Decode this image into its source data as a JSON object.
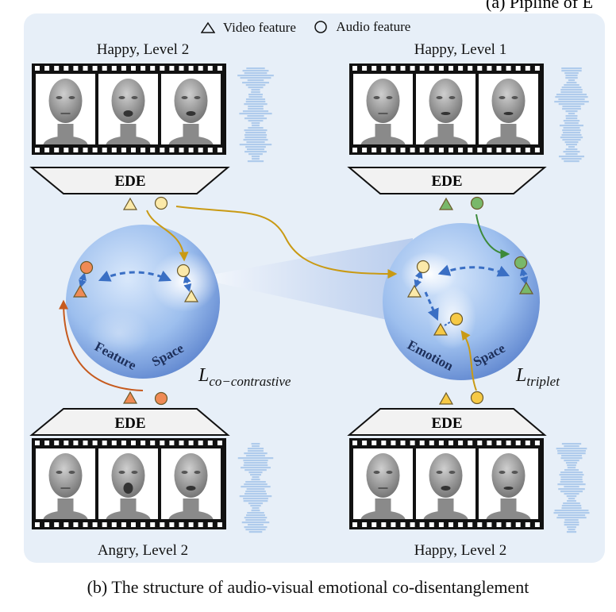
{
  "top_cut_text": "(a) Pipline of E",
  "legend": {
    "video": "Video feature",
    "audio": "Audio feature"
  },
  "clips": {
    "top_left": "Happy, Level 2",
    "top_right": "Happy, Level 1",
    "bottom_left": "Angry, Level 2",
    "bottom_right": "Happy, Level 2"
  },
  "encoder_label": "EDE",
  "spheres": {
    "left": "Feature Space",
    "right": "Emotion Space"
  },
  "losses": {
    "left_main": "L",
    "left_sub": "co−contrastive",
    "right_main": "L",
    "right_sub": "triplet"
  },
  "caption": "(b) The structure of audio-visual emotional co-disentanglement",
  "colors": {
    "panel": "#e7eff8",
    "yellow": "#f6c945",
    "orange": "#ef8a55",
    "green": "#79b86a",
    "arrow_gold": "#c99a14",
    "arrow_orange": "#c65a1e",
    "arrow_green": "#3d8a3a",
    "dashed_blue": "#3a6fc4"
  }
}
